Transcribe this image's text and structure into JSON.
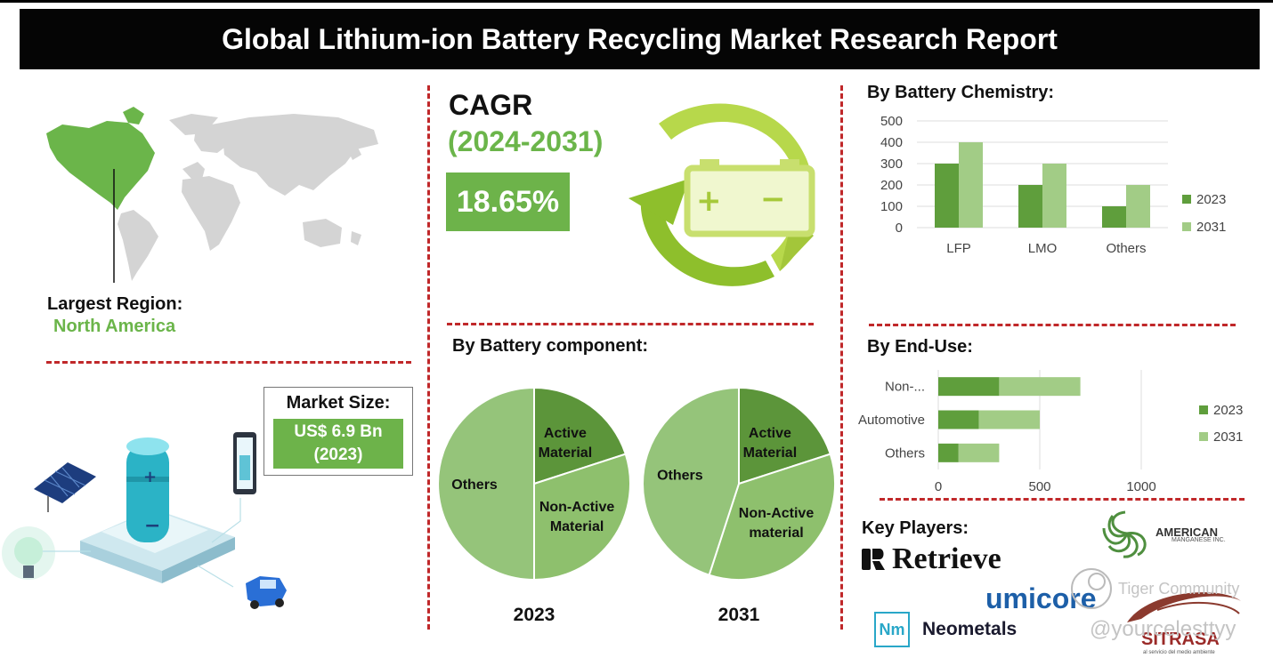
{
  "header": {
    "title": "Global Lithium-ion Battery Recycling Market Research Report"
  },
  "region": {
    "label": "Largest Region:",
    "value": "North America"
  },
  "market_size": {
    "label": "Market Size:",
    "value": "US$ 6.9 Bn",
    "year": "(2023)"
  },
  "cagr": {
    "label": "CAGR",
    "period": "(2024-2031)",
    "value": "18.65%"
  },
  "battery_component": {
    "title": "By Battery component:"
  },
  "chemistry": {
    "title": "By Battery Chemistry:"
  },
  "end_use": {
    "title": "By End-Use:"
  },
  "key_players": {
    "title": "Key Players:",
    "logos": [
      "Retrieve",
      "umicore",
      "Neometals",
      "AMERICAN",
      "MANGANESE INC.",
      "SITRASA",
      "al servicio del medio ambiente"
    ]
  },
  "watermark": {
    "line1": "Tiger Community",
    "line2": "@yourcelesttyy"
  },
  "colors": {
    "dark_green": "#5f9e3c",
    "light_green": "#a2cc86",
    "pie_mid": "#8ec06d",
    "pie_dark": "#5c953a",
    "pie_light": "#95c47a",
    "accent_red": "#c0282a"
  },
  "chart_data": [
    {
      "type": "bar",
      "title": "By Battery Chemistry:",
      "categories": [
        "LFP",
        "LMO",
        "Others"
      ],
      "series": [
        {
          "name": "2023",
          "values": [
            300,
            200,
            100
          ]
        },
        {
          "name": "2031",
          "values": [
            400,
            300,
            200
          ]
        }
      ],
      "yticks": [
        0,
        100,
        200,
        300,
        400,
        500
      ],
      "ylim": [
        0,
        500
      ],
      "grid": true,
      "legend": "right"
    },
    {
      "type": "bar",
      "orientation": "horizontal",
      "title": "By End-Use:",
      "categories": [
        "Non-...",
        "Automotive",
        "Others"
      ],
      "series": [
        {
          "name": "2023",
          "values": [
            300,
            200,
            100
          ]
        },
        {
          "name": "2031",
          "values": [
            400,
            300,
            200
          ]
        }
      ],
      "stacked": true,
      "xticks": [
        0,
        500,
        1000
      ],
      "xlim": [
        0,
        1000
      ],
      "grid": true,
      "legend": "right"
    },
    {
      "type": "pie",
      "title": "2023",
      "slices": [
        {
          "label": "Active Material",
          "value": 20
        },
        {
          "label": "Non-Active Material",
          "value": 30
        },
        {
          "label": "Others",
          "value": 50
        }
      ]
    },
    {
      "type": "pie",
      "title": "2031",
      "slices": [
        {
          "label": "Active Material",
          "value": 20
        },
        {
          "label": "Non-Active material",
          "value": 35
        },
        {
          "label": "Others",
          "value": 45
        }
      ]
    }
  ]
}
